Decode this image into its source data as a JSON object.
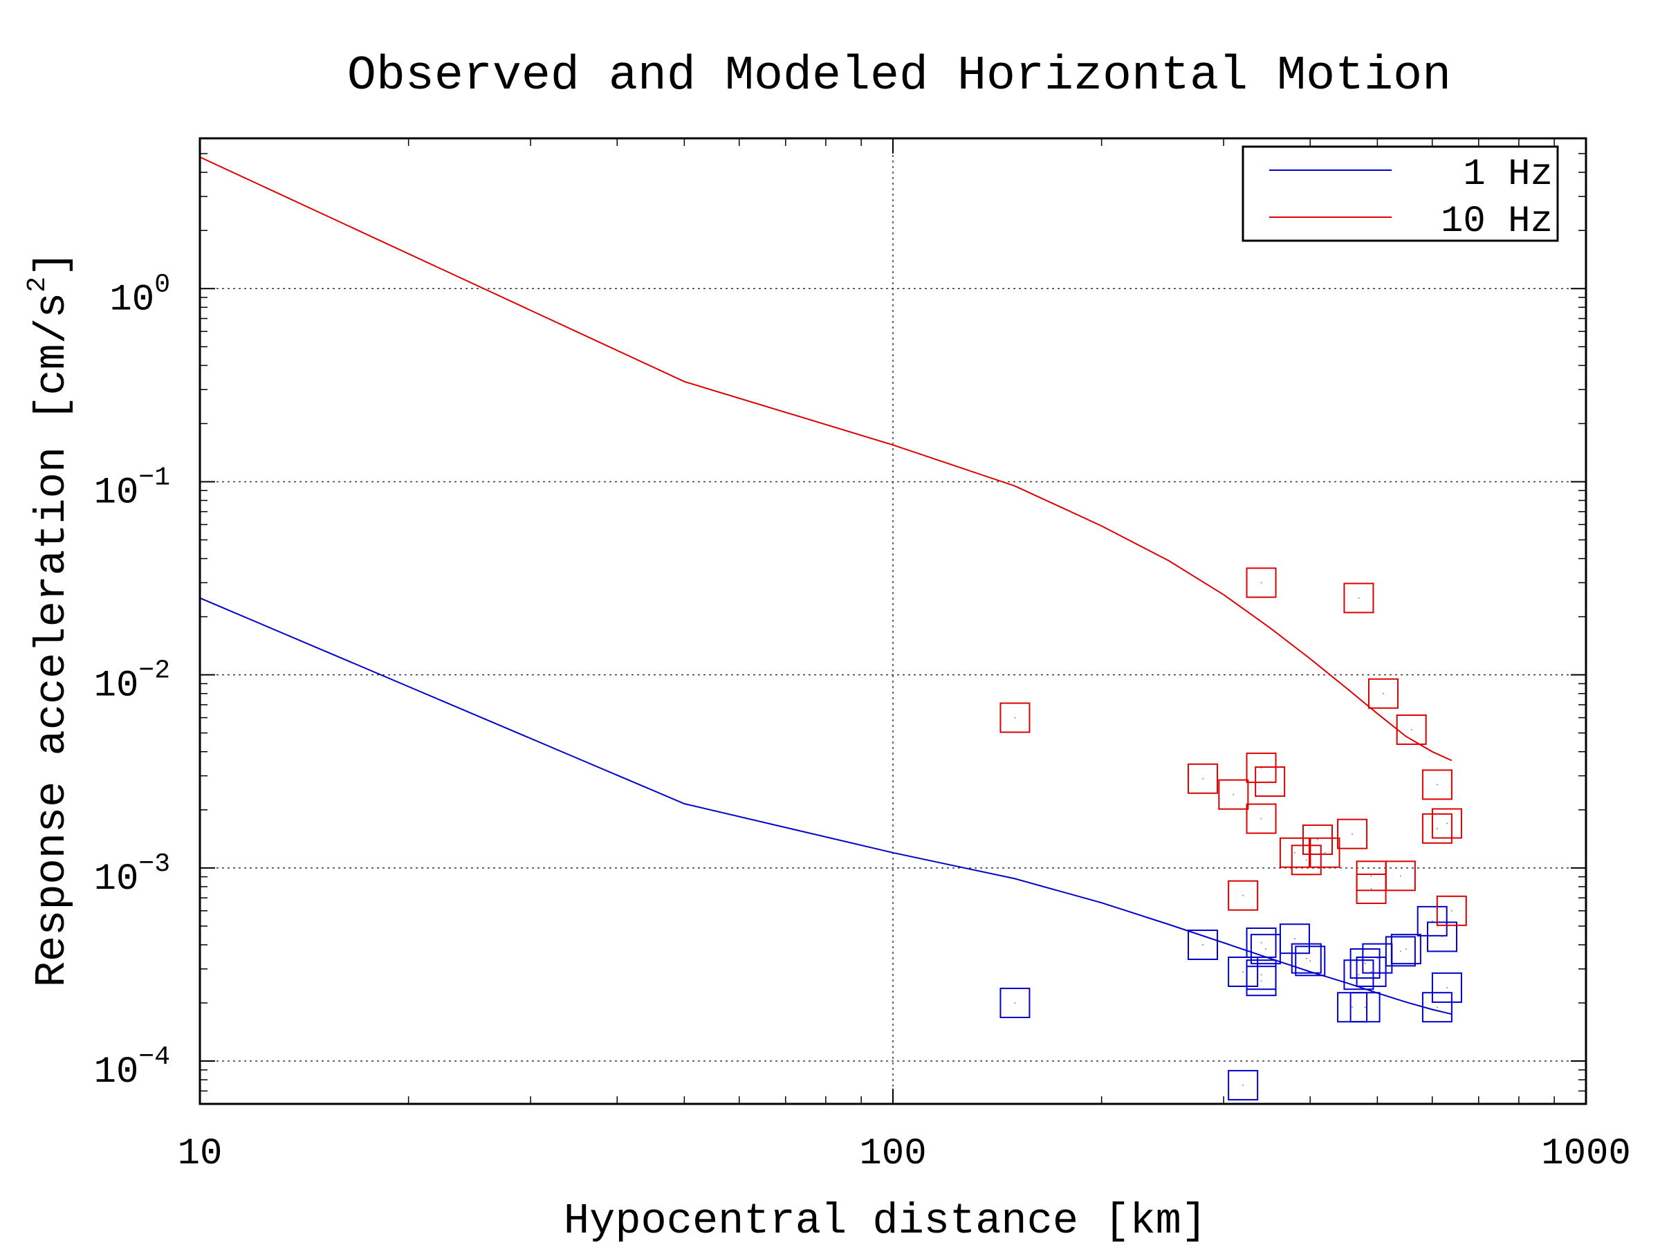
{
  "chart_data": {
    "type": "line",
    "title": "Observed and Modeled Horizontal Motion",
    "xlabel": "Hypocentral distance [km]",
    "ylabel": "Response acceleration [cm/s",
    "ylabel_exponent": "2",
    "ylabel_suffix": "]",
    "xscale": "log",
    "yscale": "log",
    "xlim": [
      10,
      1000
    ],
    "ylim": [
      6e-05,
      6
    ],
    "grid": true,
    "legend_position": "top-right",
    "x_ticks": [
      {
        "value": 10,
        "label": "10"
      },
      {
        "value": 100,
        "label": "100"
      },
      {
        "value": 1000,
        "label": "1000"
      }
    ],
    "y_ticks": [
      {
        "value": 1,
        "base": "10",
        "exp": "0"
      },
      {
        "value": 0.1,
        "base": "10",
        "exp": "−1"
      },
      {
        "value": 0.01,
        "base": "10",
        "exp": "−2"
      },
      {
        "value": 0.001,
        "base": "10",
        "exp": "−3"
      },
      {
        "value": 0.0001,
        "base": "10",
        "exp": "−4"
      }
    ],
    "series": [
      {
        "name": "1 Hz",
        "color": "#0000cc",
        "line": {
          "x": [
            10,
            50,
            100,
            150,
            200,
            250,
            300,
            350,
            400,
            450,
            500,
            550,
            600,
            640
          ],
          "y": [
            0.025,
            0.00215,
            0.0012,
            0.00088,
            0.00066,
            0.00051,
            0.00041,
            0.00034,
            0.00029,
            0.000255,
            0.000225,
            0.000202,
            0.000185,
            0.000175
          ]
        },
        "observed": [
          [
            150,
            0.0002
          ],
          [
            280,
            0.0004
          ],
          [
            320,
            7.5e-05
          ],
          [
            320,
            0.00029
          ],
          [
            340,
            0.00026
          ],
          [
            340,
            0.00028
          ],
          [
            340,
            0.00041
          ],
          [
            345,
            0.00038
          ],
          [
            380,
            0.00043
          ],
          [
            395,
            0.00034
          ],
          [
            400,
            0.00033
          ],
          [
            460,
            0.00019
          ],
          [
            470,
            0.00028
          ],
          [
            480,
            0.00019
          ],
          [
            480,
            0.00032
          ],
          [
            490,
            0.00029
          ],
          [
            500,
            0.00034
          ],
          [
            540,
            0.00037
          ],
          [
            550,
            0.00038
          ],
          [
            600,
            0.00053
          ],
          [
            610,
            0.00019
          ],
          [
            620,
            0.00044
          ],
          [
            630,
            0.00024
          ]
        ]
      },
      {
        "name": "10 Hz",
        "color": "#dd0000",
        "line": {
          "x": [
            10,
            50,
            100,
            150,
            200,
            250,
            300,
            350,
            400,
            450,
            500,
            550,
            600,
            640
          ],
          "y": [
            4.8,
            0.33,
            0.155,
            0.095,
            0.059,
            0.039,
            0.026,
            0.0175,
            0.0121,
            0.0086,
            0.0063,
            0.0048,
            0.004,
            0.0036
          ]
        },
        "observed": [
          [
            150,
            0.006
          ],
          [
            280,
            0.0029
          ],
          [
            310,
            0.0024
          ],
          [
            320,
            0.00072
          ],
          [
            340,
            0.03
          ],
          [
            340,
            0.0033
          ],
          [
            340,
            0.0018
          ],
          [
            350,
            0.0028
          ],
          [
            380,
            0.0012
          ],
          [
            395,
            0.0011
          ],
          [
            410,
            0.0014
          ],
          [
            420,
            0.0012
          ],
          [
            460,
            0.0015
          ],
          [
            470,
            0.025
          ],
          [
            490,
            0.00091
          ],
          [
            490,
            0.00078
          ],
          [
            510,
            0.008
          ],
          [
            540,
            0.00091
          ],
          [
            560,
            0.0052
          ],
          [
            610,
            0.0027
          ],
          [
            610,
            0.0016
          ],
          [
            630,
            0.0017
          ],
          [
            640,
            0.0006
          ]
        ]
      }
    ]
  }
}
